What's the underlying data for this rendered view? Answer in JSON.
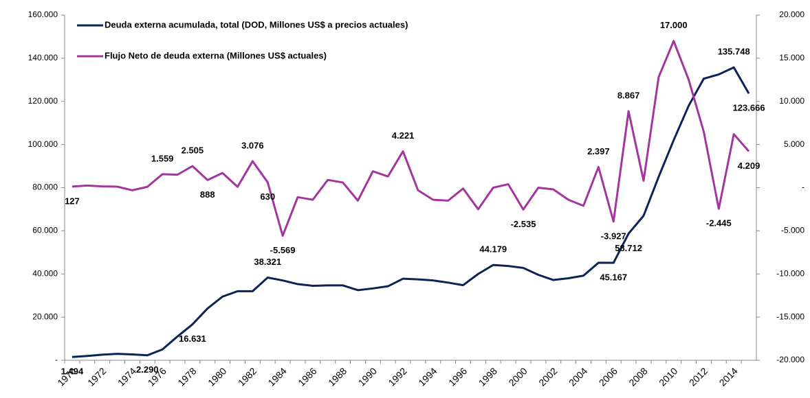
{
  "chart_data": {
    "type": "line",
    "categories": [
      "1970",
      null,
      "1972",
      null,
      "1974",
      null,
      "1976",
      null,
      "1978",
      null,
      "1980",
      null,
      "1982",
      null,
      "1984",
      null,
      "1986",
      null,
      "1988",
      null,
      "1990",
      null,
      "1992",
      null,
      "1994",
      null,
      "1996",
      null,
      "1998",
      null,
      "2000",
      null,
      "2002",
      null,
      "2004",
      null,
      "2006",
      null,
      "2008",
      null,
      "2010",
      null,
      "2012",
      null,
      "2014",
      null
    ],
    "series": [
      {
        "name": "Deuda externa acumulada, total (DOD,  Millones US$ a precios actuales)",
        "color": "#0d2257",
        "axis": "y",
        "values": [
          1494,
          2000,
          2600,
          3000,
          2700,
          2290,
          5000,
          11000,
          16631,
          24000,
          29500,
          32000,
          32000,
          38321,
          37000,
          35300,
          34500,
          34700,
          34700,
          32500,
          33300,
          34300,
          37800,
          37500,
          37000,
          36000,
          34800,
          40000,
          44179,
          43700,
          42800,
          39600,
          37200,
          38000,
          39200,
          45200,
          45167,
          58712,
          67000,
          85000,
          102000,
          118000,
          130500,
          132500,
          135748,
          123666
        ],
        "value_labels": [
          "1.494",
          null,
          null,
          null,
          null,
          "2.290",
          null,
          null,
          "16.631",
          null,
          null,
          null,
          null,
          "38.321",
          null,
          null,
          null,
          null,
          null,
          null,
          null,
          null,
          null,
          null,
          null,
          null,
          null,
          null,
          "44.179",
          null,
          null,
          null,
          null,
          null,
          null,
          null,
          "45.167",
          "58.712",
          null,
          null,
          null,
          null,
          null,
          null,
          "135.748",
          "123.666"
        ]
      },
      {
        "name": "Flujo Neto de deuda externa (Millones US$ actuales)",
        "color": "#a3359f",
        "axis": "y2",
        "values": [
          127,
          250,
          150,
          120,
          -300,
          100,
          1559,
          1500,
          2505,
          888,
          1700,
          100,
          3076,
          630,
          -5569,
          -1100,
          -1400,
          900,
          600,
          -1500,
          1900,
          1300,
          4221,
          -300,
          -1400,
          -1500,
          -100,
          -2500,
          0,
          400,
          -2535,
          0,
          -200,
          -1400,
          -2100,
          2397,
          -3927,
          8867,
          800,
          12800,
          17000,
          12500,
          6500,
          -2445,
          6200,
          4209
        ],
        "value_labels": [
          "127",
          null,
          null,
          null,
          null,
          null,
          "1.559",
          null,
          "2.505",
          "888",
          null,
          null,
          "3.076",
          "630",
          "-5.569",
          null,
          null,
          null,
          null,
          null,
          null,
          null,
          "4.221",
          null,
          null,
          null,
          null,
          null,
          null,
          null,
          "-2.535",
          null,
          null,
          null,
          null,
          "2.397",
          "-3.927",
          "8.867",
          null,
          null,
          "17.000",
          null,
          null,
          "-2.445",
          null,
          "4.209"
        ]
      }
    ],
    "ylim": [
      0,
      160000
    ],
    "yticks": [
      {
        "value": 0,
        "label": "-"
      },
      {
        "value": 20000,
        "label": "20.000"
      },
      {
        "value": 40000,
        "label": "40.000"
      },
      {
        "value": 60000,
        "label": "60.000"
      },
      {
        "value": 80000,
        "label": "80.000"
      },
      {
        "value": 100000,
        "label": "100.000"
      },
      {
        "value": 120000,
        "label": "120.000"
      },
      {
        "value": 140000,
        "label": "140.000"
      },
      {
        "value": 160000,
        "label": "160.000"
      }
    ],
    "y2lim": [
      -20000,
      20000
    ],
    "y2ticks": [
      {
        "value": -20000,
        "label": "-20.000"
      },
      {
        "value": -15000,
        "label": "-15.000"
      },
      {
        "value": -10000,
        "label": "-10.000"
      },
      {
        "value": -5000,
        "label": "-5.000"
      },
      {
        "value": 0,
        "label": "-"
      },
      {
        "value": 5000,
        "label": "5.000"
      },
      {
        "value": 10000,
        "label": "10.000"
      },
      {
        "value": 15000,
        "label": "15.000"
      },
      {
        "value": 20000,
        "label": "20.000"
      }
    ],
    "grid": false,
    "legend": "top-left"
  }
}
